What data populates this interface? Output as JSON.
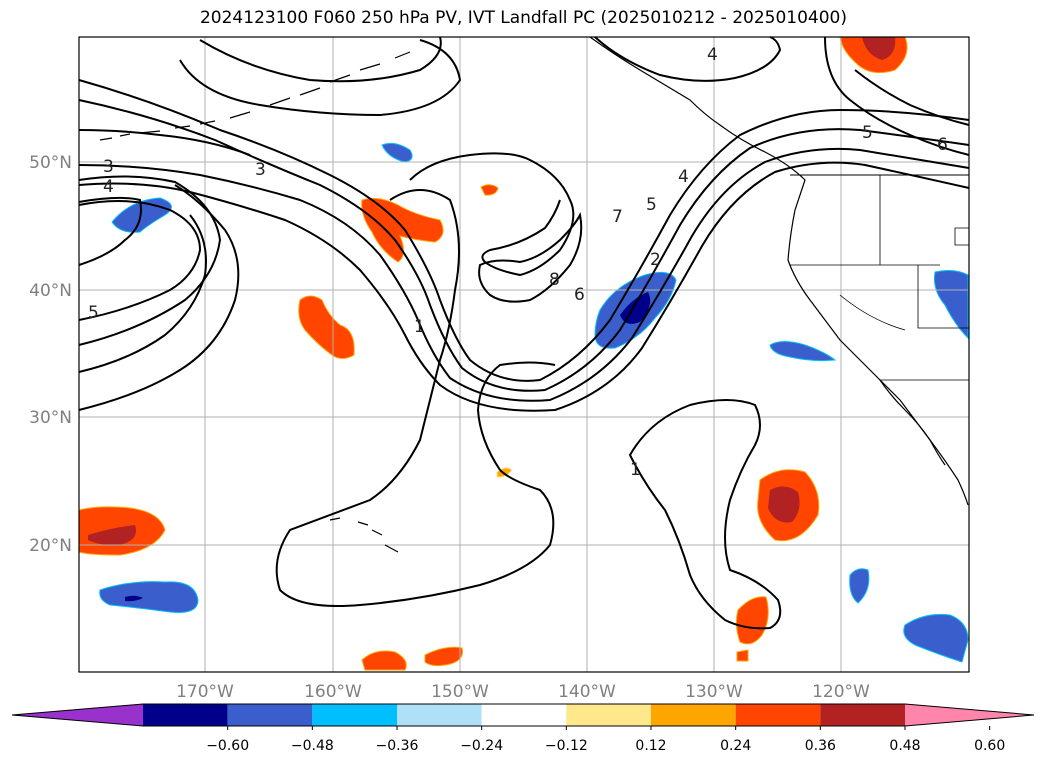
{
  "title": "2024123100 F060 250 hPa PV, IVT Landfall PC (2025010212 - 2025010400)",
  "map": {
    "lat_ticks": [
      "50°N",
      "40°N",
      "30°N",
      "20°N"
    ],
    "lon_ticks": [
      "170°W",
      "160°W",
      "150°W",
      "140°W",
      "130°W",
      "120°W"
    ],
    "contour_labels": [
      "3",
      "4",
      "3",
      "5",
      "1",
      "7",
      "5",
      "4",
      "2",
      "8",
      "6",
      "1",
      "4",
      "5",
      "6"
    ]
  },
  "colorbar": {
    "ticks": [
      "−0.60",
      "−0.48",
      "−0.36",
      "−0.24",
      "−0.12",
      "0.12",
      "0.24",
      "0.36",
      "0.48",
      "0.60"
    ],
    "colors": [
      "#9932cc",
      "#00008b",
      "#3a5fcd",
      "#00bfff",
      "#b0e0f7",
      "#ffffff",
      "#ffe88c",
      "#ffa500",
      "#ff4500",
      "#b22222",
      "#ff85aa"
    ]
  }
}
